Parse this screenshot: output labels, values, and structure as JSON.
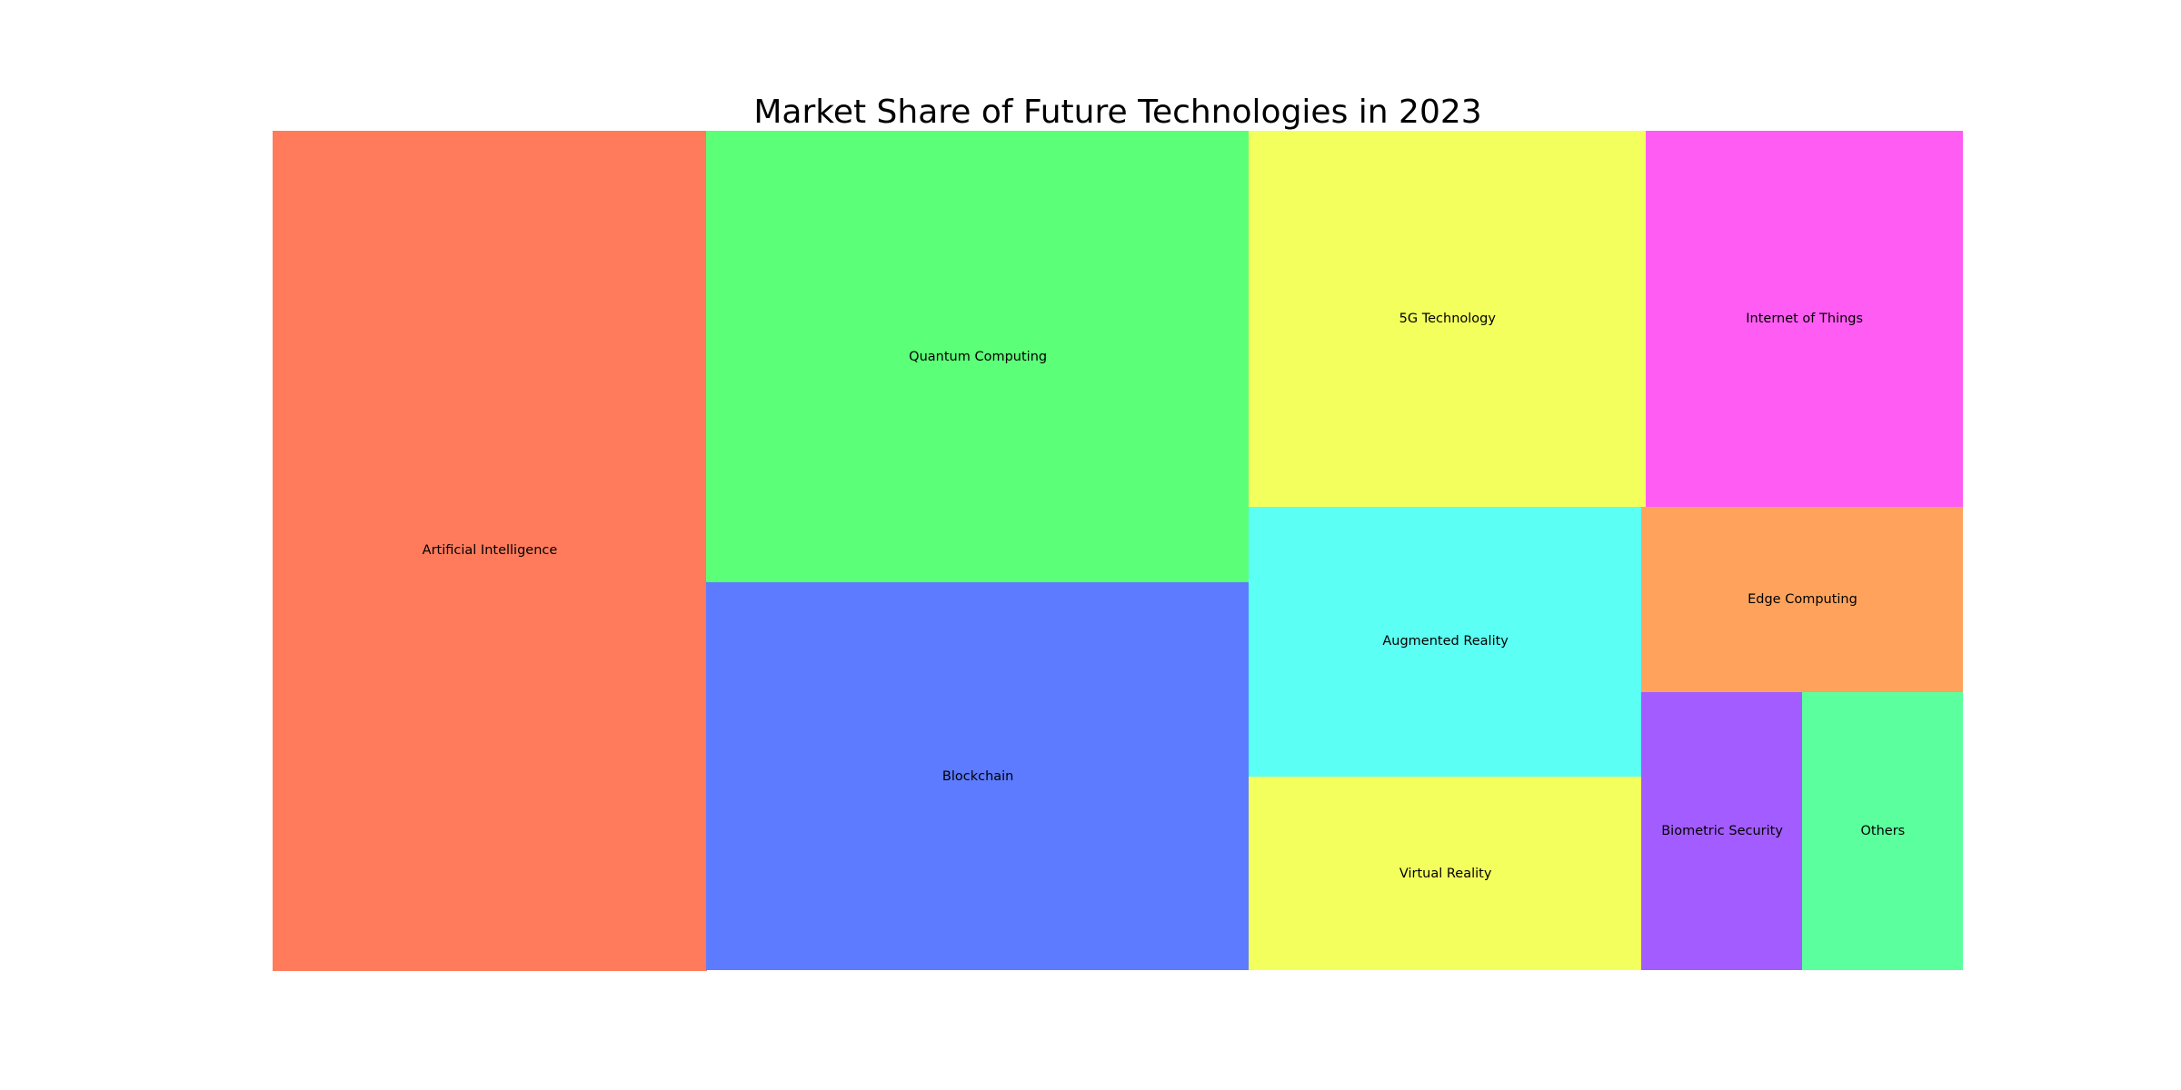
{
  "chart_data": {
    "type": "treemap",
    "title": "Market Share of Future Technologies in 2023",
    "items": [
      {
        "label": "Artificial Intelligence",
        "value": 22.0,
        "color": "#ff7b5c"
      },
      {
        "label": "Quantum Computing",
        "value": 14.8,
        "color": "#5cff78"
      },
      {
        "label": "Blockchain",
        "value": 12.7,
        "color": "#5c7bff"
      },
      {
        "label": "5G Technology",
        "value": 9.0,
        "color": "#f3ff5c"
      },
      {
        "label": "Internet of Things",
        "value": 7.2,
        "color": "#ff5cf3"
      },
      {
        "label": "Augmented Reality",
        "value": 6.4,
        "color": "#5cfff3"
      },
      {
        "label": "Virtual Reality",
        "value": 4.6,
        "color": "#f3ff5c"
      },
      {
        "label": "Edge Computing",
        "value": 3.6,
        "color": "#ffa35c"
      },
      {
        "label": "Biometric Security",
        "value": 2.7,
        "color": "#a35cff"
      },
      {
        "label": "Others",
        "value": 2.7,
        "color": "#5cff9e"
      }
    ]
  }
}
